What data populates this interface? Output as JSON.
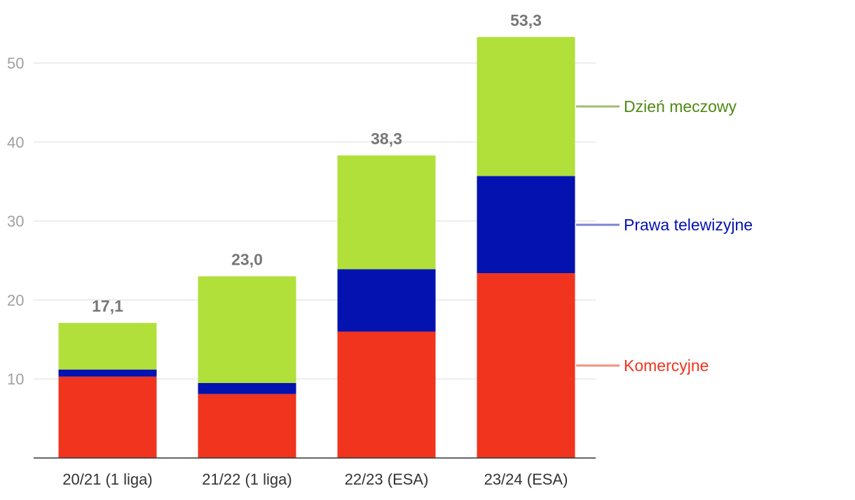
{
  "chart_data": {
    "type": "bar",
    "stacked": true,
    "title": "",
    "xlabel": "",
    "ylabel": "",
    "ylim": [
      0,
      55
    ],
    "yticks": [
      10,
      20,
      30,
      40,
      50
    ],
    "grid": true,
    "legend_position": "right",
    "categories": [
      "20/21 (1 liga)",
      "21/22 (1 liga)",
      "22/23 (ESA)",
      "23/24 (ESA)"
    ],
    "series": [
      {
        "name": "Komercyjne",
        "color": "#f0341e",
        "legend_line_color": "#f4907f",
        "values": [
          10.3,
          8.1,
          16.0,
          23.4
        ]
      },
      {
        "name": "Prawa telewizyjne",
        "color": "#0412b0",
        "legend_line_color": "#7d84d4",
        "values": [
          0.9,
          1.4,
          7.9,
          12.3
        ]
      },
      {
        "name": "Dzień meczowy",
        "color": "#b1e03a",
        "legend_line_color": "#a3bc6f",
        "text_color": "#4d8a12",
        "values": [
          5.9,
          13.5,
          14.4,
          17.6
        ]
      }
    ],
    "totals": [
      "17,1",
      "23,0",
      "38,3",
      "53,3"
    ]
  }
}
